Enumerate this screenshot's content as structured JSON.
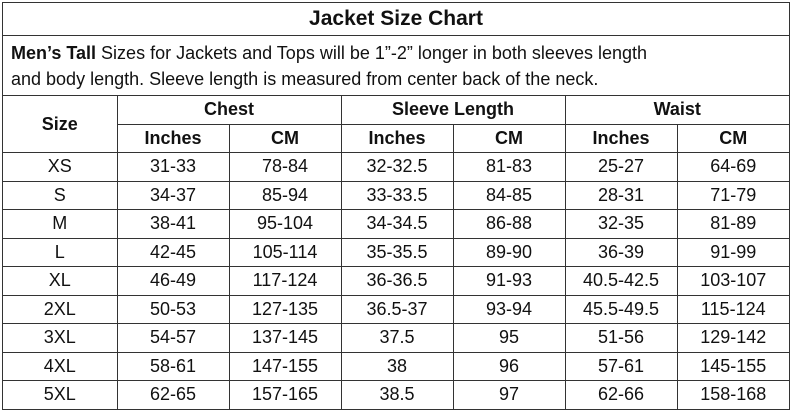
{
  "title": "Jacket Size Chart",
  "note": {
    "bold": "Men’s Tall",
    "lines": [
      "Sizes for Jackets and Tops will be 1”-2” longer in both sleeves length",
      "and body length. Sleeve length is measured from center back of the neck."
    ]
  },
  "table": {
    "groups": [
      "Size",
      "Chest",
      "Sleeve Length",
      "Waist"
    ],
    "units": [
      "Inches",
      "CM",
      "Inches",
      "CM",
      "Inches",
      "CM"
    ],
    "rows": [
      [
        "XS",
        "31-33",
        "78-84",
        "32-32.5",
        "81-83",
        "25-27",
        "64-69"
      ],
      [
        "S",
        "34-37",
        "85-94",
        "33-33.5",
        "84-85",
        "28-31",
        "71-79"
      ],
      [
        "M",
        "38-41",
        "95-104",
        "34-34.5",
        "86-88",
        "32-35",
        "81-89"
      ],
      [
        "L",
        "42-45",
        "105-114",
        "35-35.5",
        "89-90",
        "36-39",
        "91-99"
      ],
      [
        "XL",
        "46-49",
        "117-124",
        "36-36.5",
        "91-93",
        "40.5-42.5",
        "103-107"
      ],
      [
        "2XL",
        "50-53",
        "127-135",
        "36.5-37",
        "93-94",
        "45.5-49.5",
        "115-124"
      ],
      [
        "3XL",
        "54-57",
        "137-145",
        "37.5",
        "95",
        "51-56",
        "129-142"
      ],
      [
        "4XL",
        "58-61",
        "147-155",
        "38",
        "96",
        "57-61",
        "145-155"
      ],
      [
        "5XL",
        "62-65",
        "157-165",
        "38.5",
        "97",
        "62-66",
        "158-168"
      ]
    ]
  }
}
